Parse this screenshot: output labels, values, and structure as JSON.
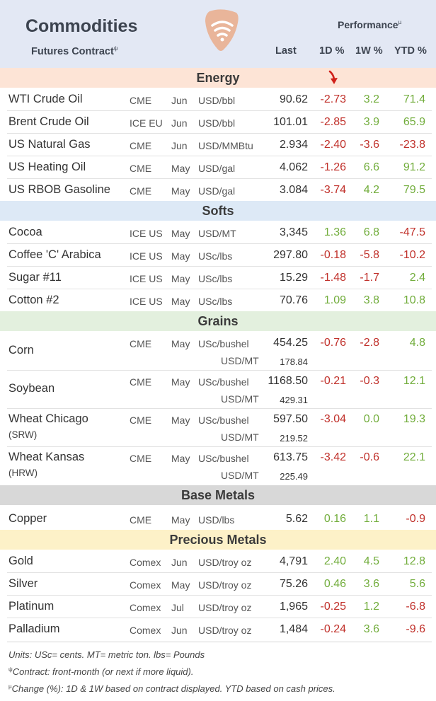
{
  "header": {
    "title": "Commodities",
    "subtitle": "Futures Contract",
    "subtitle_mark": "ψ",
    "performance": "Performance",
    "performance_mark": "µ",
    "col_last": "Last",
    "col_1d": "1D %",
    "col_1w": "1W %",
    "col_ytd": "YTD %"
  },
  "sections": {
    "energy": "Energy",
    "softs": "Softs",
    "grains": "Grains",
    "base": "Base Metals",
    "precious": "Precious Metals"
  },
  "energy": [
    {
      "name": "WTI Crude Oil",
      "exch": "CME",
      "mon": "Jun",
      "unit": "USD/bbl",
      "last": "90.62",
      "d1": "-2.73",
      "w1": "3.2",
      "ytd": "71.4"
    },
    {
      "name": "Brent Crude Oil",
      "exch": "ICE EU",
      "mon": "Jun",
      "unit": "USD/bbl",
      "last": "101.01",
      "d1": "-2.85",
      "w1": "3.9",
      "ytd": "65.9"
    },
    {
      "name": "US Natural Gas",
      "exch": "CME",
      "mon": "Jun",
      "unit": "USD/MMBtu",
      "last": "2.934",
      "d1": "-2.40",
      "w1": "-3.6",
      "ytd": "-23.8"
    },
    {
      "name": "US Heating Oil",
      "exch": "CME",
      "mon": "May",
      "unit": "USD/gal",
      "last": "4.062",
      "d1": "-1.26",
      "w1": "6.6",
      "ytd": "91.2"
    },
    {
      "name": "US RBOB Gasoline",
      "exch": "CME",
      "mon": "May",
      "unit": "USD/gal",
      "last": "3.084",
      "d1": "-3.74",
      "w1": "4.2",
      "ytd": "79.5"
    }
  ],
  "softs": [
    {
      "name": "Cocoa",
      "exch": "ICE US",
      "mon": "May",
      "unit": "USD/MT",
      "last": "3,345",
      "d1": "1.36",
      "w1": "6.8",
      "ytd": "-47.5"
    },
    {
      "name": "Coffee 'C' Arabica",
      "exch": "ICE US",
      "mon": "May",
      "unit": "USc/lbs",
      "last": "297.80",
      "d1": "-0.18",
      "w1": "-5.8",
      "ytd": "-10.2"
    },
    {
      "name": "Sugar #11",
      "exch": "ICE US",
      "mon": "May",
      "unit": "USc/lbs",
      "last": "15.29",
      "d1": "-1.48",
      "w1": "-1.7",
      "ytd": "2.4"
    },
    {
      "name": "Cotton #2",
      "exch": "ICE US",
      "mon": "May",
      "unit": "USc/lbs",
      "last": "70.76",
      "d1": "1.09",
      "w1": "3.8",
      "ytd": "10.8"
    }
  ],
  "grains": [
    {
      "name": "Corn",
      "name2": "",
      "exch": "CME",
      "mon": "May",
      "unit": "USc/bushel",
      "last": "454.25",
      "d1": "-0.76",
      "w1": "-2.8",
      "ytd": "4.8",
      "unit2": "USD/MT",
      "last2": "178.84"
    },
    {
      "name": "Soybean",
      "name2": "",
      "exch": "CME",
      "mon": "May",
      "unit": "USc/bushel",
      "last": "1168.50",
      "d1": "-0.21",
      "w1": "-0.3",
      "ytd": "12.1",
      "unit2": "USD/MT",
      "last2": "429.31"
    },
    {
      "name": "Wheat Chicago",
      "name2": "(SRW)",
      "exch": "CME",
      "mon": "May",
      "unit": "USc/bushel",
      "last": "597.50",
      "d1": "-3.04",
      "w1": "0.0",
      "ytd": "19.3",
      "unit2": "USD/MT",
      "last2": "219.52"
    },
    {
      "name": "Wheat Kansas",
      "name2": "(HRW)",
      "exch": "CME",
      "mon": "May",
      "unit": "USc/bushel",
      "last": "613.75",
      "d1": "-3.42",
      "w1": "-0.6",
      "ytd": "22.1",
      "unit2": "USD/MT",
      "last2": "225.49"
    }
  ],
  "base": [
    {
      "name": "Copper",
      "exch": "CME",
      "mon": "May",
      "unit": "USD/lbs",
      "last": "5.62",
      "d1": "0.16",
      "w1": "1.1",
      "ytd": "-0.9"
    }
  ],
  "precious": [
    {
      "name": "Gold",
      "exch": "Comex",
      "mon": "Jun",
      "unit": "USD/troy oz",
      "last": "4,791",
      "d1": "2.40",
      "w1": "4.5",
      "ytd": "12.8"
    },
    {
      "name": "Silver",
      "exch": "Comex",
      "mon": "May",
      "unit": "USD/troy oz",
      "last": "75.26",
      "d1": "0.46",
      "w1": "3.6",
      "ytd": "5.6"
    },
    {
      "name": "Platinum",
      "exch": "Comex",
      "mon": "Jul",
      "unit": "USD/troy oz",
      "last": "1,965",
      "d1": "-0.25",
      "w1": "1.2",
      "ytd": "-6.8"
    },
    {
      "name": "Palladium",
      "exch": "Comex",
      "mon": "Jun",
      "unit": "USD/troy oz",
      "last": "1,484",
      "d1": "-0.24",
      "w1": "3.6",
      "ytd": "-9.6"
    }
  ],
  "footnotes": {
    "units": "Units: USc= cents.  MT= metric ton.  lbs= Pounds",
    "contract_mark": "ψ",
    "contract": "Contract: front-month (or next if more liquid).",
    "change_mark": "µ",
    "change": "Change (%): 1D & 1W based on contract displayed. YTD based on cash prices."
  },
  "colors": {
    "negative": "#c0302a",
    "positive": "#72ad3c",
    "logo": "#e9b59a",
    "arrow": "#d0201a"
  },
  "icons": {
    "logo": "wifi-shield-logo",
    "indicator": "down-arrow-icon"
  }
}
